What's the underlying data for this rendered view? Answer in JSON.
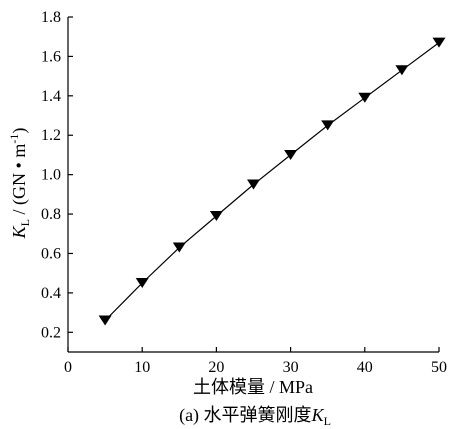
{
  "chart_data": {
    "type": "line",
    "title": "",
    "caption": {
      "prefix": "(a) 水平弹簧刚度",
      "symbol": "K",
      "subscript": "L"
    },
    "xlabel": "土体模量 / MPa",
    "ylabel": {
      "symbol": "K",
      "subscript": "L",
      "unit_prefix": " / (GN • m",
      "unit_sup": "-1",
      "unit_suffix": ")"
    },
    "xlim": [
      0,
      50
    ],
    "ylim": [
      0.1,
      1.8
    ],
    "xticks": [
      0,
      10,
      20,
      30,
      40,
      50
    ],
    "xtick_labels": [
      "0",
      "10",
      "20",
      "30",
      "40",
      "50"
    ],
    "yticks": [
      0.2,
      0.4,
      0.6,
      0.8,
      1.0,
      1.2,
      1.4,
      1.6,
      1.8
    ],
    "ytick_labels": [
      "0.2",
      "0.4",
      "0.6",
      "0.8",
      "1.0",
      "1.2",
      "1.4",
      "1.6",
      "1.8"
    ],
    "grid": false,
    "marker": "downward-triangle",
    "colors": {
      "line": "#000000",
      "marker": "#000000",
      "axis": "#000000"
    },
    "series": [
      {
        "x": [
          5,
          10,
          15,
          20,
          25,
          30,
          35,
          40,
          45,
          50
        ],
        "y": [
          0.26,
          0.45,
          0.63,
          0.79,
          0.95,
          1.1,
          1.25,
          1.39,
          1.53,
          1.67
        ]
      }
    ]
  }
}
